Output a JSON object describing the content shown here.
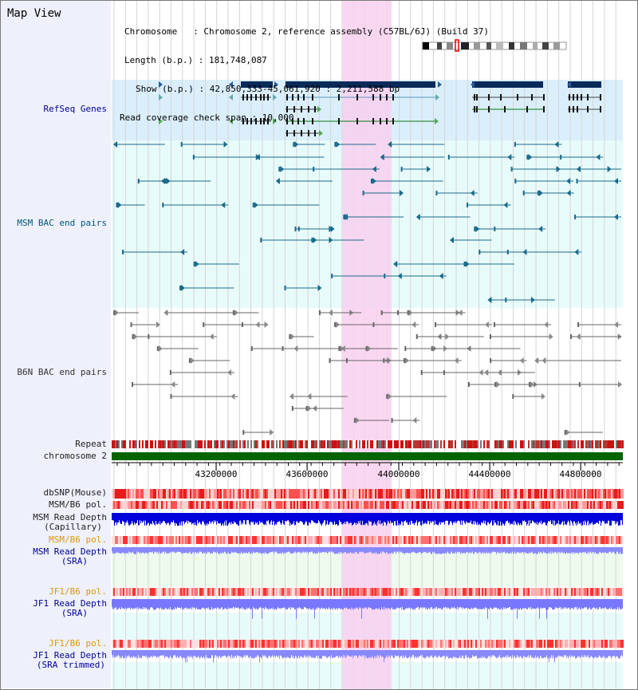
{
  "view_title": "Map View",
  "info": {
    "chromosome_line": "Chromosome   : Chromosome 2, reference assembly (C57BL/6J) (Build 37)",
    "length_line": "Length (b.p.) : 181,748,087",
    "show_line": "Show (b.p.) : 42,850,333-45,061,920 : 2,211,588 bp",
    "coverage_line": "Read coverage check span : 10,000"
  },
  "tracks": {
    "refseq": "RefSeq Genes",
    "msm_bac": "MSM BAC end pairs",
    "b6n_bac": "B6N BAC end pairs",
    "repeat": "Repeat",
    "chromosome": "chromosome 2",
    "dbsnp": "dbSNP(Mouse)",
    "msm_b6_pol_1": "MSM/B6 pol.",
    "msm_depth_cap_1": "MSM Read Depth",
    "msm_depth_cap_2": "(Capillary)",
    "msm_b6_pol_2": "MSM/B6 pol.",
    "msm_depth_sra_1": "MSM Read Depth",
    "msm_depth_sra_2": "(SRA)",
    "jf1_pol_1": "JF1/B6 pol.",
    "jf1_depth_sra_1": "JF1 Read Depth",
    "jf1_depth_sra_2": "(SRA)",
    "jf1_pol_2": "JF1/B6 pol.",
    "jf1_depth_trim_1": "JF1 Read Depth",
    "jf1_depth_trim_2": "(SRA trimmed)"
  },
  "axis": {
    "ticks": [
      "43200000",
      "43600000",
      "44000000",
      "44400000",
      "44800000"
    ]
  },
  "colors": {
    "highlight": "#f8d0ee",
    "refseq_bg": "#daeffb",
    "msm_bg": "#e8fbfb",
    "gene_dark": "#0a2a5a",
    "msm_line": "#1a6a8a",
    "b6n_line": "#666666",
    "chrom_green": "#006400",
    "depth_dark": "#0000dd",
    "depth_light": "#8888ff"
  }
}
